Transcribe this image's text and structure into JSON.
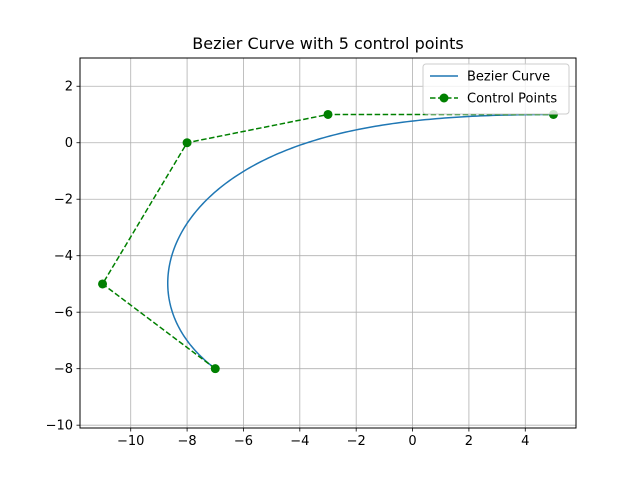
{
  "chart_data": {
    "type": "line",
    "title": "Bezier Curve with 5 control points",
    "xlabel": "",
    "ylabel": "",
    "xlim": [
      -11.8,
      5.8
    ],
    "ylim": [
      -10.1,
      3.0
    ],
    "xticks": [
      -10,
      -8,
      -6,
      -4,
      -2,
      0,
      2,
      4
    ],
    "yticks": [
      -10,
      -8,
      -6,
      -4,
      -2,
      0,
      2
    ],
    "grid": true,
    "legend_position": "top-right",
    "series": [
      {
        "name": "Bezier Curve",
        "style": "solid",
        "color": "#1f77b4",
        "derived_from": "Control Points"
      },
      {
        "name": "Control Points",
        "style": "dashed-with-markers",
        "color": "#008000",
        "x": [
          -7,
          -11,
          -8,
          -3,
          5
        ],
        "y": [
          -8,
          -5,
          0,
          1,
          1
        ]
      }
    ]
  }
}
